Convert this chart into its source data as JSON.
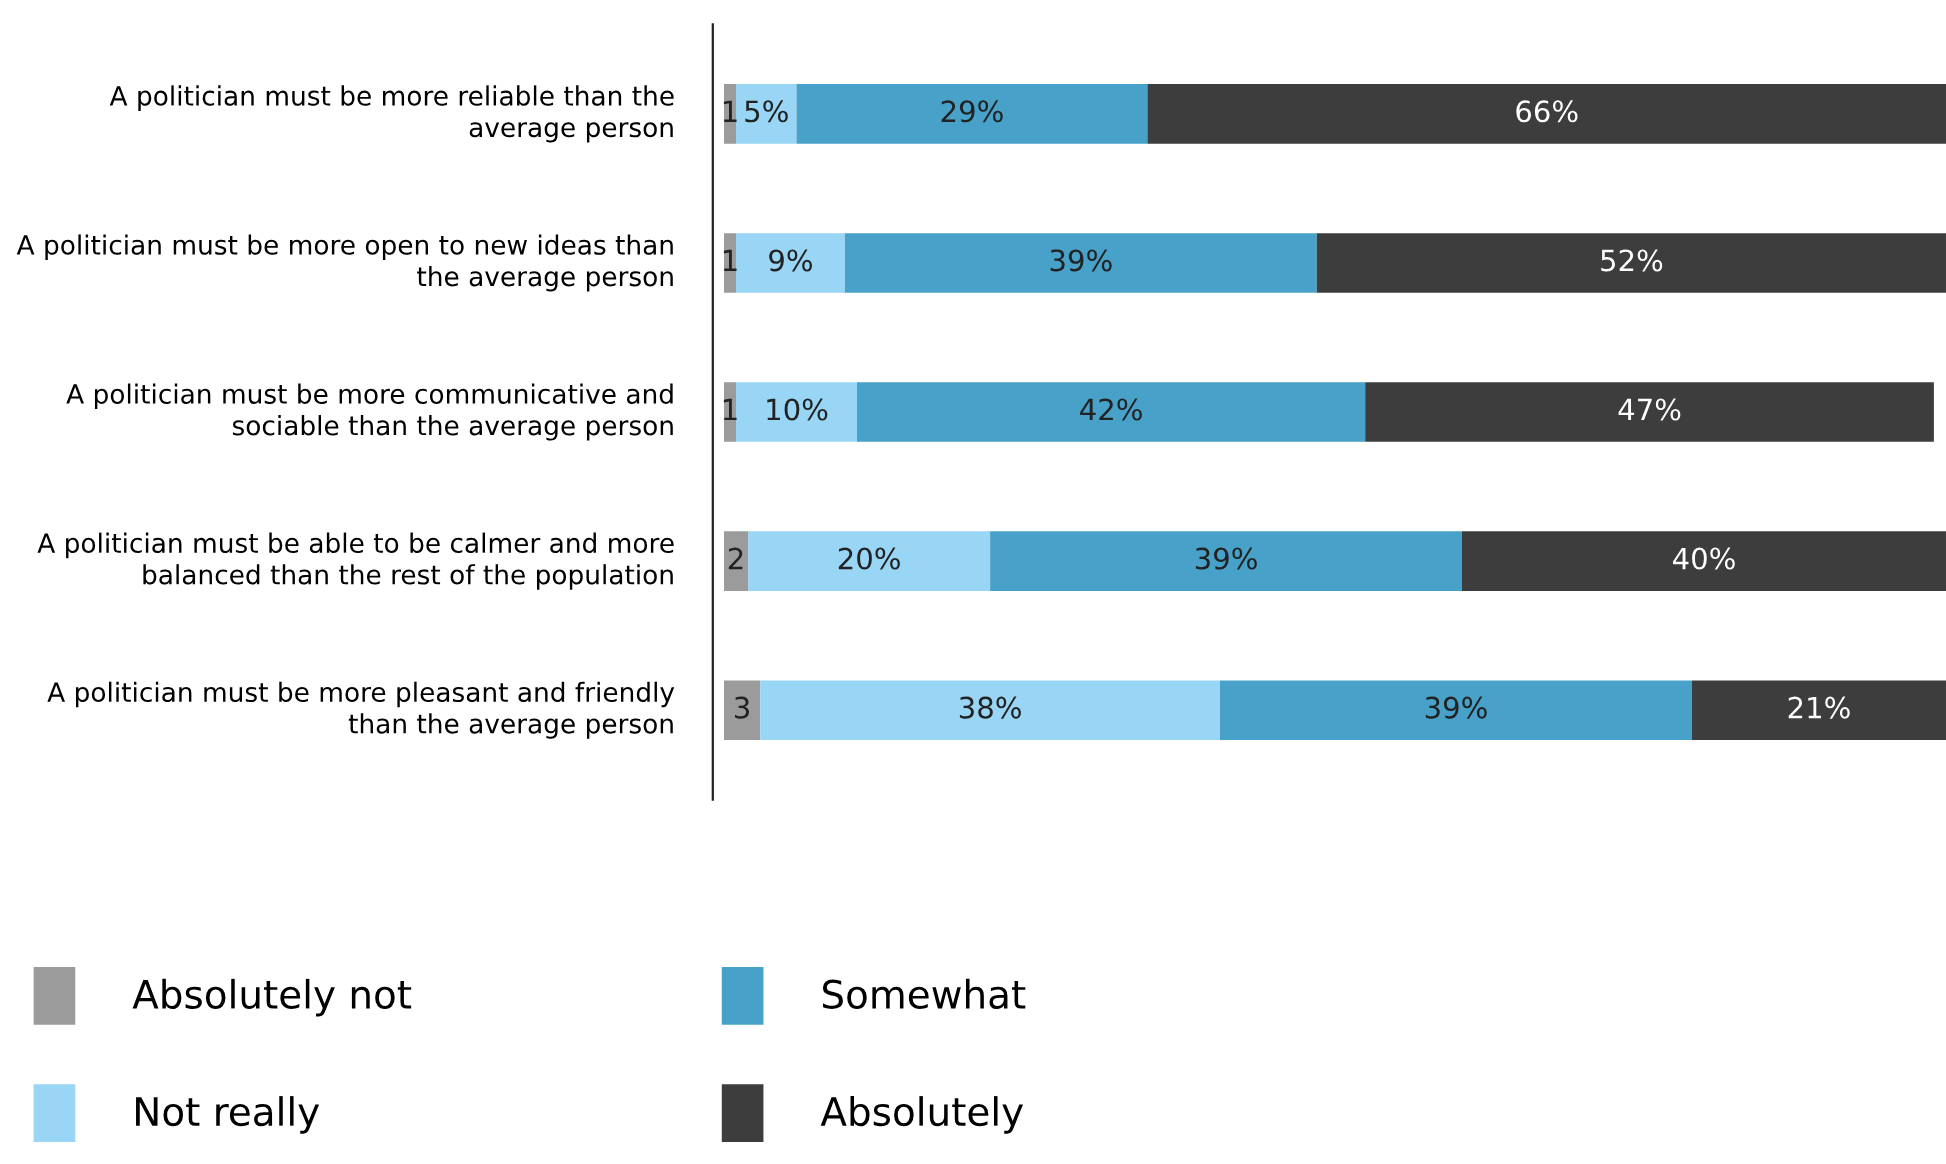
{
  "chart_data": {
    "type": "bar",
    "orientation": "horizontal",
    "stacked": true,
    "data_labels": true,
    "legend": "bottom",
    "grid": false,
    "tick_labels": "y",
    "xlim": [
      0,
      101
    ],
    "categories": [
      "A politician must be more reliable than the average person",
      "A politician must be more open to new ideas than the average person",
      "A politician must be more communicative and sociable than the average person",
      "A politician must be able to be calmer and more balanced than the rest of the population",
      "A politician must be more pleasant and friendly than the average person"
    ],
    "series": [
      {
        "name": "Absolutely not",
        "color": "#9b9b9b",
        "values": [
          1,
          1,
          1,
          2,
          3
        ],
        "value_labels": [
          "1",
          "1",
          "1",
          "2",
          "3"
        ]
      },
      {
        "name": "Not really",
        "color": "#99d5f5",
        "values": [
          5,
          9,
          10,
          20,
          38
        ],
        "value_labels": [
          "5%",
          "9%",
          "10%",
          "20%",
          "38%"
        ]
      },
      {
        "name": "Somewhat",
        "color": "#48a1c9",
        "values": [
          29,
          39,
          42,
          39,
          39
        ],
        "value_labels": [
          "29%",
          "39%",
          "42%",
          "39%",
          "39%"
        ]
      },
      {
        "name": "Absolutely",
        "color": "#3c3d3c",
        "values": [
          66,
          52,
          47,
          40,
          21
        ],
        "value_labels": [
          "66%",
          "52%",
          "47%",
          "40%",
          "21%"
        ]
      }
    ]
  }
}
